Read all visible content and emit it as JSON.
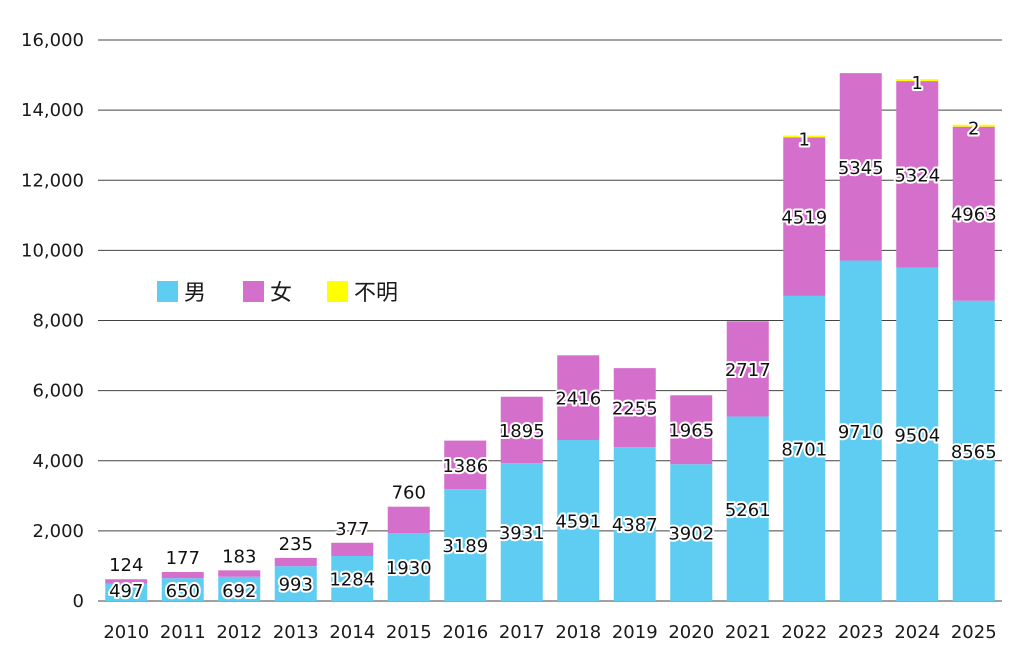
{
  "chart_data": {
    "type": "bar",
    "stacked": true,
    "title": "",
    "xlabel": "",
    "ylabel": "",
    "ylim": [
      0,
      16000
    ],
    "y_ticks": [
      "0",
      "2,000",
      "4,000",
      "6,000",
      "8,000",
      "10,000",
      "12,000",
      "14,000",
      "16,000"
    ],
    "grid": true,
    "legend_position": "left-middle",
    "categories": [
      "2010",
      "2011",
      "2012",
      "2013",
      "2014",
      "2015",
      "2016",
      "2017",
      "2018",
      "2019",
      "2020",
      "2021",
      "2022",
      "2023",
      "2024",
      "2025"
    ],
    "series": [
      {
        "name": "男",
        "color": "#5fcdf1",
        "values": [
          497,
          650,
          692,
          993,
          1284,
          1930,
          3189,
          3931,
          4591,
          4387,
          3902,
          5261,
          8701,
          9710,
          9504,
          8565
        ]
      },
      {
        "name": "女",
        "color": "#d56fcc",
        "values": [
          124,
          177,
          183,
          235,
          377,
          760,
          1386,
          1895,
          2416,
          2255,
          1965,
          2717,
          4519,
          5345,
          5324,
          4963
        ]
      },
      {
        "name": "不明",
        "color": "#ffff00",
        "values": [
          0,
          0,
          0,
          0,
          0,
          0,
          0,
          0,
          0,
          0,
          0,
          0,
          1,
          0,
          1,
          2
        ]
      }
    ]
  }
}
